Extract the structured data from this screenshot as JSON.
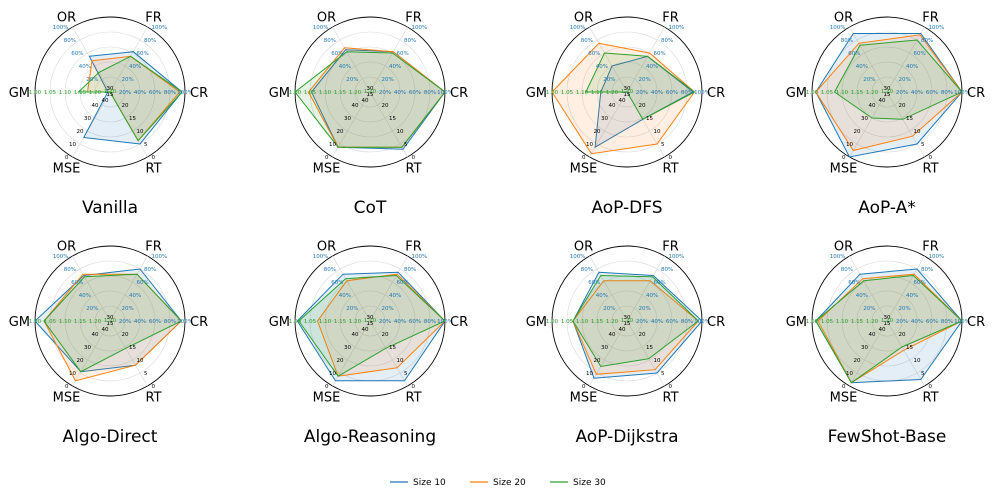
{
  "chart_data": {
    "type": "radar",
    "axes": [
      "OR",
      "FR",
      "CR",
      "RT",
      "MSE",
      "GM"
    ],
    "axis_ticks": {
      "OR": [
        "20%",
        "40%",
        "60%",
        "80%",
        "100%"
      ],
      "FR": [
        "20%",
        "40%",
        "60%",
        "80%",
        "100%"
      ],
      "CR": [
        "20%",
        "40%",
        "60%",
        "80%",
        "100%"
      ],
      "RT": [
        "20",
        "15",
        "10",
        "5",
        "0"
      ],
      "MSE": [
        "40",
        "30",
        "20",
        "10",
        "0"
      ],
      "GM": [
        "1.20",
        "1.15",
        "1.10",
        "1.05",
        "1.00"
      ]
    },
    "center_labels": [
      "30",
      "15",
      "40",
      "1.20"
    ],
    "legend": [
      {
        "name": "Size 10",
        "color": "#1f77b4"
      },
      {
        "name": "Size 20",
        "color": "#ff7f0e"
      },
      {
        "name": "Size 30",
        "color": "#2ca02c"
      }
    ],
    "subplots": [
      {
        "title": "Vanilla",
        "series": [
          {
            "name": "Size 10",
            "values": [
              0.55,
              0.62,
              0.96,
              0.8,
              0.7,
              0.03
            ]
          },
          {
            "name": "Size 20",
            "values": [
              0.48,
              0.55,
              0.93,
              0.75,
              0.0,
              0.3
            ]
          },
          {
            "name": "Size 30",
            "values": [
              0.3,
              0.55,
              0.96,
              0.75,
              0.0,
              0.42
            ]
          }
        ]
      },
      {
        "title": "CoT",
        "series": [
          {
            "name": "Size 10",
            "values": [
              0.65,
              0.62,
              1.0,
              0.88,
              0.85,
              0.78
            ]
          },
          {
            "name": "Size 20",
            "values": [
              0.68,
              0.62,
              1.0,
              0.85,
              0.85,
              0.82
            ]
          },
          {
            "name": "Size 30",
            "values": [
              0.62,
              0.6,
              1.0,
              0.85,
              0.85,
              1.0
            ]
          }
        ]
      },
      {
        "title": "AoP-DFS",
        "series": [
          {
            "name": "Size 10",
            "values": [
              0.4,
              0.55,
              0.88,
              0.42,
              0.85,
              0.35
            ]
          },
          {
            "name": "Size 20",
            "values": [
              0.75,
              0.6,
              0.9,
              0.8,
              0.95,
              1.0
            ]
          },
          {
            "name": "Size 30",
            "values": [
              0.6,
              0.55,
              0.9,
              0.42,
              0.0,
              0.55
            ]
          }
        ]
      },
      {
        "title": "AoP-A*",
        "series": [
          {
            "name": "Size 10",
            "values": [
              0.9,
              0.9,
              1.0,
              0.8,
              1.0,
              0.95
            ]
          },
          {
            "name": "Size 20",
            "values": [
              0.75,
              0.88,
              1.0,
              0.68,
              0.9,
              0.95
            ]
          },
          {
            "name": "Size 30",
            "values": [
              0.72,
              0.8,
              1.0,
              0.42,
              0.4,
              0.7
            ]
          }
        ]
      },
      {
        "title": "Algo-Direct",
        "series": [
          {
            "name": "Size 10",
            "values": [
              0.7,
              0.8,
              0.95,
              0.68,
              0.78,
              1.0
            ]
          },
          {
            "name": "Size 20",
            "values": [
              0.72,
              0.72,
              0.95,
              0.68,
              0.92,
              0.88
            ]
          },
          {
            "name": "Size 30",
            "values": [
              0.68,
              0.72,
              0.95,
              0.42,
              0.78,
              0.88
            ]
          }
        ]
      },
      {
        "title": "Algo-Reasoning",
        "series": [
          {
            "name": "Size 10",
            "values": [
              0.72,
              0.75,
              1.0,
              0.92,
              0.92,
              0.97
            ]
          },
          {
            "name": "Size 20",
            "values": [
              0.62,
              0.72,
              1.0,
              0.72,
              0.85,
              0.7
            ]
          },
          {
            "name": "Size 30",
            "values": [
              0.65,
              0.7,
              1.0,
              0.42,
              0.85,
              0.95
            ]
          }
        ]
      },
      {
        "title": "AoP-Dijkstra",
        "series": [
          {
            "name": "Size 10",
            "values": [
              0.75,
              0.7,
              1.0,
              0.8,
              0.88,
              0.72
            ]
          },
          {
            "name": "Size 20",
            "values": [
              0.62,
              0.62,
              0.95,
              0.75,
              0.82,
              0.72
            ]
          },
          {
            "name": "Size 30",
            "values": [
              0.7,
              0.68,
              0.95,
              0.58,
              0.7,
              0.72
            ]
          }
        ]
      },
      {
        "title": "FewShot-Base",
        "series": [
          {
            "name": "Size 10",
            "values": [
              0.72,
              0.8,
              1.0,
              0.9,
              0.95,
              0.95
            ]
          },
          {
            "name": "Size 20",
            "values": [
              0.65,
              0.72,
              1.0,
              0.45,
              0.95,
              0.92
            ]
          },
          {
            "name": "Size 30",
            "values": [
              0.62,
              0.7,
              1.0,
              0.4,
              0.95,
              0.95
            ]
          }
        ]
      }
    ]
  }
}
